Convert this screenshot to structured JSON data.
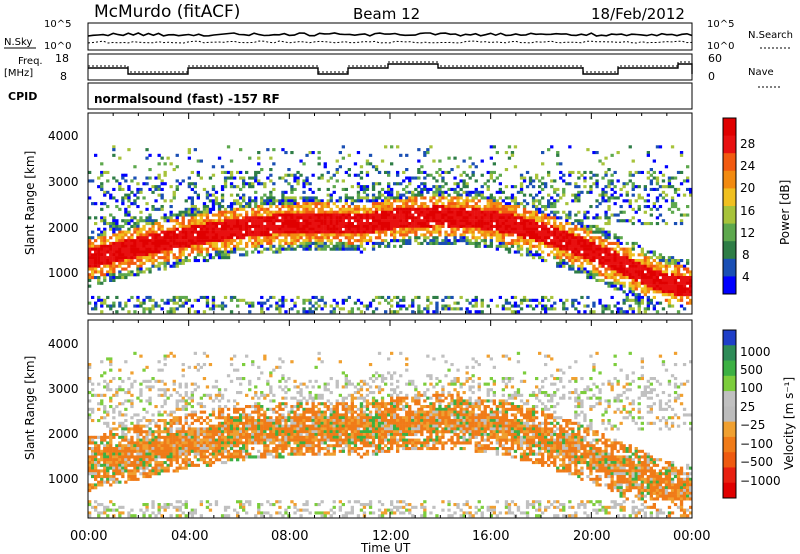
{
  "header": {
    "station": "McMurdo (fitACF)",
    "beam": "Beam 12",
    "date": "18/Feb/2012"
  },
  "panels": {
    "nsky_label": "N.Sky",
    "nsky_ticks": [
      "10^5",
      "10^0"
    ],
    "nsearch_label": "N.Search",
    "nsearch_ticks": [
      "10^5",
      "10^0"
    ],
    "freq_label_1": "Freq.",
    "freq_label_2": "[MHz]",
    "freq_ticks": [
      "18",
      "8"
    ],
    "nave_label": "Nave",
    "nave_ticks": [
      "60",
      "0"
    ],
    "cpid_label": "CPID",
    "cpid_text": "normalsound (fast) -157 RF"
  },
  "colors": {
    "power_scale": [
      "#0000ff",
      "#1a4fb4",
      "#2e7d46",
      "#5da84d",
      "#a7c33a",
      "#f0c020",
      "#f28a10",
      "#f25a10",
      "#e81010",
      "#e00000"
    ],
    "velocity_scale": [
      "#1f3fc8",
      "#2e8b57",
      "#3cb043",
      "#7ccd3c",
      "#c0c0c0",
      "#bcbcbc",
      "#f0a030",
      "#f07b18",
      "#ee5a10",
      "#e82010",
      "#e00000"
    ]
  },
  "chart_data": [
    {
      "type": "heatmap",
      "name": "power",
      "ylabel": "Slant Range [km]",
      "yticks": [
        "4000",
        "3000",
        "2000",
        "1000"
      ],
      "ylim": [
        180,
        4600
      ],
      "xlim": [
        0,
        24
      ],
      "colorbar_label": "Power [dB]",
      "colorbar_ticks": [
        "28",
        "24",
        "20",
        "16",
        "12",
        "8",
        "4"
      ],
      "colorbar_range": [
        0,
        32
      ]
    },
    {
      "type": "heatmap",
      "name": "velocity",
      "ylabel": "Slant Range [km]",
      "yticks": [
        "4000",
        "3000",
        "2000",
        "1000"
      ],
      "ylim": [
        180,
        4600
      ],
      "xlim": [
        0,
        24
      ],
      "colorbar_label": "Velocity [m s⁻¹]",
      "colorbar_ticks": [
        "1000",
        "500",
        "100",
        "25",
        "−25",
        "−100",
        "−500",
        "−1000"
      ],
      "xlabel": "Time UT",
      "xticks": [
        "00:00",
        "04:00",
        "08:00",
        "12:00",
        "16:00",
        "20:00",
        "00:00"
      ]
    }
  ]
}
